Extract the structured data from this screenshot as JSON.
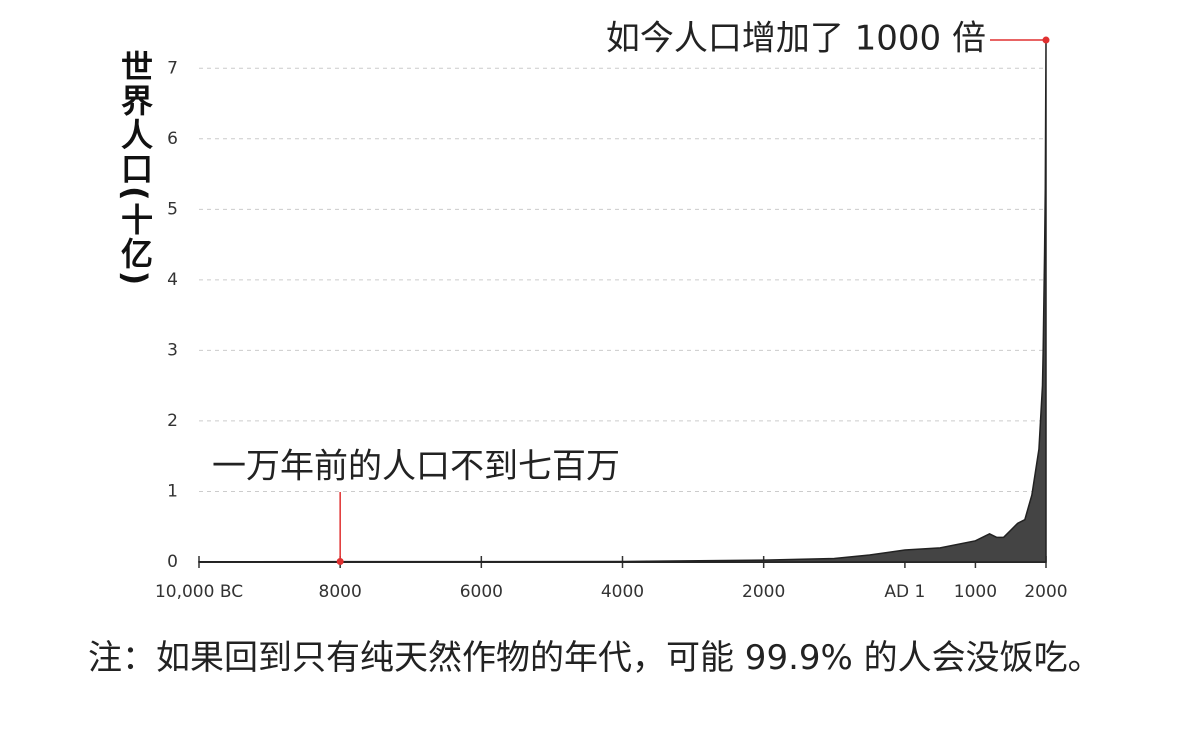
{
  "chart_data": {
    "type": "area",
    "y_label": "世界人口(十亿)",
    "x": [
      -10000,
      -8000,
      -6000,
      -4000,
      -2000,
      -1000,
      -500,
      1,
      500,
      1000,
      1200,
      1300,
      1400,
      1500,
      1600,
      1700,
      1800,
      1900,
      1950,
      1960,
      1970,
      1980,
      1990,
      2000
    ],
    "values": [
      0.004,
      0.005,
      0.006,
      0.007,
      0.027,
      0.05,
      0.1,
      0.17,
      0.2,
      0.3,
      0.4,
      0.35,
      0.35,
      0.45,
      0.55,
      0.6,
      0.95,
      1.6,
      2.5,
      3.0,
      3.7,
      4.4,
      5.3,
      7.4
    ],
    "color": "#444444",
    "xlim": [
      -10000,
      2000
    ],
    "xticks": [
      {
        "value": -10000,
        "label": "10,000 BC"
      },
      {
        "value": -8000,
        "label": "8000"
      },
      {
        "value": -6000,
        "label": "6000"
      },
      {
        "value": -4000,
        "label": "4000"
      },
      {
        "value": -2000,
        "label": "2000"
      },
      {
        "value": 1,
        "label": "AD 1"
      },
      1000,
      2000
    ],
    "ylim": [
      0,
      7.5
    ],
    "yticks": [
      0,
      1,
      2,
      3,
      4,
      5,
      6,
      7
    ],
    "grid": true,
    "annotations": [
      {
        "text": "如今人口增加了 1000 倍",
        "x": 2000,
        "y": 7.4,
        "color": "#e03030"
      },
      {
        "text": "一万年前的人口不到七百万",
        "x": -8000,
        "y": 0.007,
        "color": "#e03030"
      }
    ],
    "note": "注：如果回到只有纯天然作物的年代，可能 99.9% 的人会没饭吃。"
  }
}
